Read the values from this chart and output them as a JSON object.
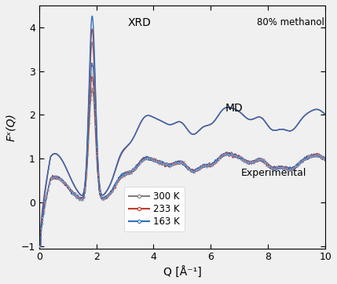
{
  "title_xrd": "XRD",
  "title_methanol": "80% methanol",
  "title_md": "MD",
  "title_experimental": "Experimental",
  "xlabel": "Q [Å⁻¹]",
  "ylabel": "Fˣ(Q)",
  "xlim": [
    0,
    10
  ],
  "ylim": [
    -1.05,
    4.5
  ],
  "yticks": [
    -1,
    0,
    1,
    2,
    3,
    4
  ],
  "xticks": [
    0,
    2,
    4,
    6,
    8,
    10
  ],
  "colors": {
    "300K": "#808080",
    "233K": "#c0392b",
    "163K": "#3070c0"
  },
  "background_color": "#f0f0f0"
}
